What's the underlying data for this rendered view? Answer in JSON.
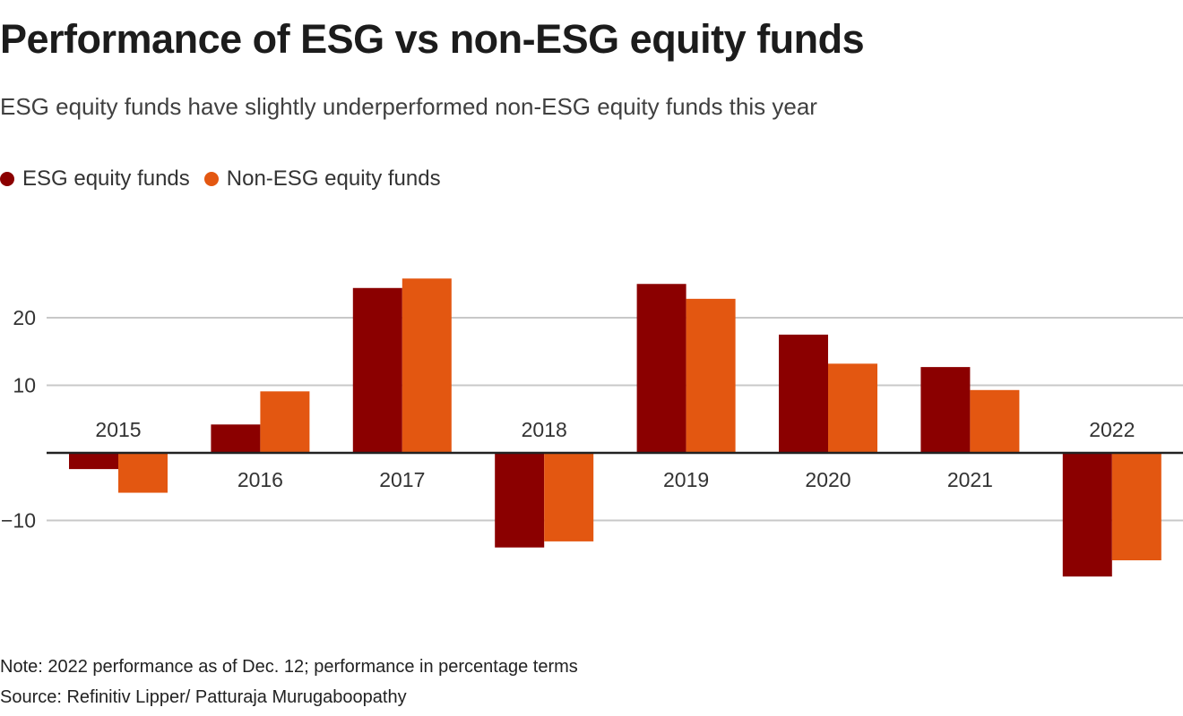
{
  "header": {
    "title": "Performance of ESG vs non-ESG equity funds",
    "subtitle": "ESG equity funds have slightly underperformed non-ESG equity funds this year"
  },
  "footer": {
    "note": "Note: 2022 performance as of Dec. 12; performance in percentage terms",
    "source": "Source: Refinitiv Lipper/ Patturaja Murugaboopathy"
  },
  "colors": {
    "esg": "#8b0000",
    "non_esg": "#e35711",
    "grid": "#c8c8c8",
    "zero_line": "#222222"
  },
  "chart_data": {
    "type": "bar",
    "title": "Performance of ESG vs non-ESG equity funds",
    "subtitle": "ESG equity funds have slightly underperformed non-ESG equity funds this year",
    "xlabel": "",
    "ylabel": "",
    "categories": [
      "2015",
      "2016",
      "2017",
      "2018",
      "2019",
      "2020",
      "2021",
      "2022"
    ],
    "series": [
      {
        "name": "ESG equity funds",
        "color": "#8b0000",
        "values": [
          -2.4,
          4.2,
          24.4,
          -14.0,
          25.0,
          17.5,
          12.7,
          -18.3
        ]
      },
      {
        "name": "Non-ESG equity funds",
        "color": "#e35711",
        "values": [
          -5.9,
          9.1,
          25.8,
          -13.1,
          22.8,
          13.2,
          9.3,
          -15.9
        ]
      }
    ],
    "yticks": [
      20,
      10,
      -10
    ],
    "ytick_labels": [
      "20",
      "10",
      "−10"
    ],
    "ylim": [
      -20,
      27
    ],
    "grid": true,
    "legend": "top-left",
    "category_label_position": "opposite side of zero line from bars"
  }
}
